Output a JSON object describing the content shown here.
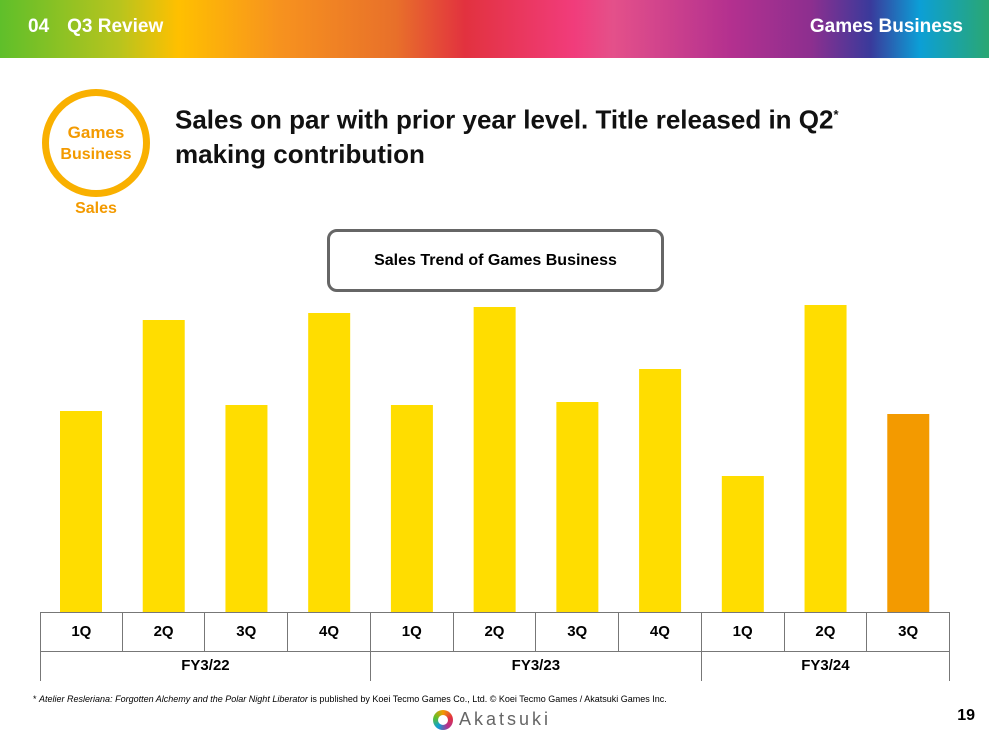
{
  "header": {
    "section": "04",
    "title": "Q3 Review",
    "right": "Games Business"
  },
  "badge": {
    "line1": "Games",
    "line2": "Business",
    "label": "Sales"
  },
  "headline": {
    "line1": "Sales on par with prior year level. Title released in Q2",
    "mark": "*",
    "line2": "making contribution"
  },
  "chart_data": {
    "type": "bar",
    "title": "Sales Trend of Games Business",
    "categories": [
      "1Q",
      "2Q",
      "3Q",
      "4Q",
      "1Q",
      "2Q",
      "3Q",
      "4Q",
      "1Q",
      "2Q",
      "3Q"
    ],
    "groups": [
      {
        "label": "FY3/22",
        "count": 4
      },
      {
        "label": "FY3/23",
        "count": 4
      },
      {
        "label": "FY3/24",
        "count": 3
      }
    ],
    "values": [
      201,
      292,
      207,
      299,
      207,
      305,
      210,
      243,
      136,
      307,
      198
    ],
    "highlight_index": 10,
    "colors": {
      "bar": "#ffdd00",
      "highlight": "#f39a00"
    },
    "ylabel": "",
    "note": "relative heights; no axis values shown"
  },
  "footnote": {
    "mark": "*",
    "italic": "Atelier Resleriana: Forgotten Alchemy and the Polar Night Liberator",
    "rest": " is published by Koei Tecmo Games Co., Ltd.  © Koei Tecmo Games / Akatsuki Games Inc."
  },
  "logo": "Akatsuki",
  "page": "19"
}
